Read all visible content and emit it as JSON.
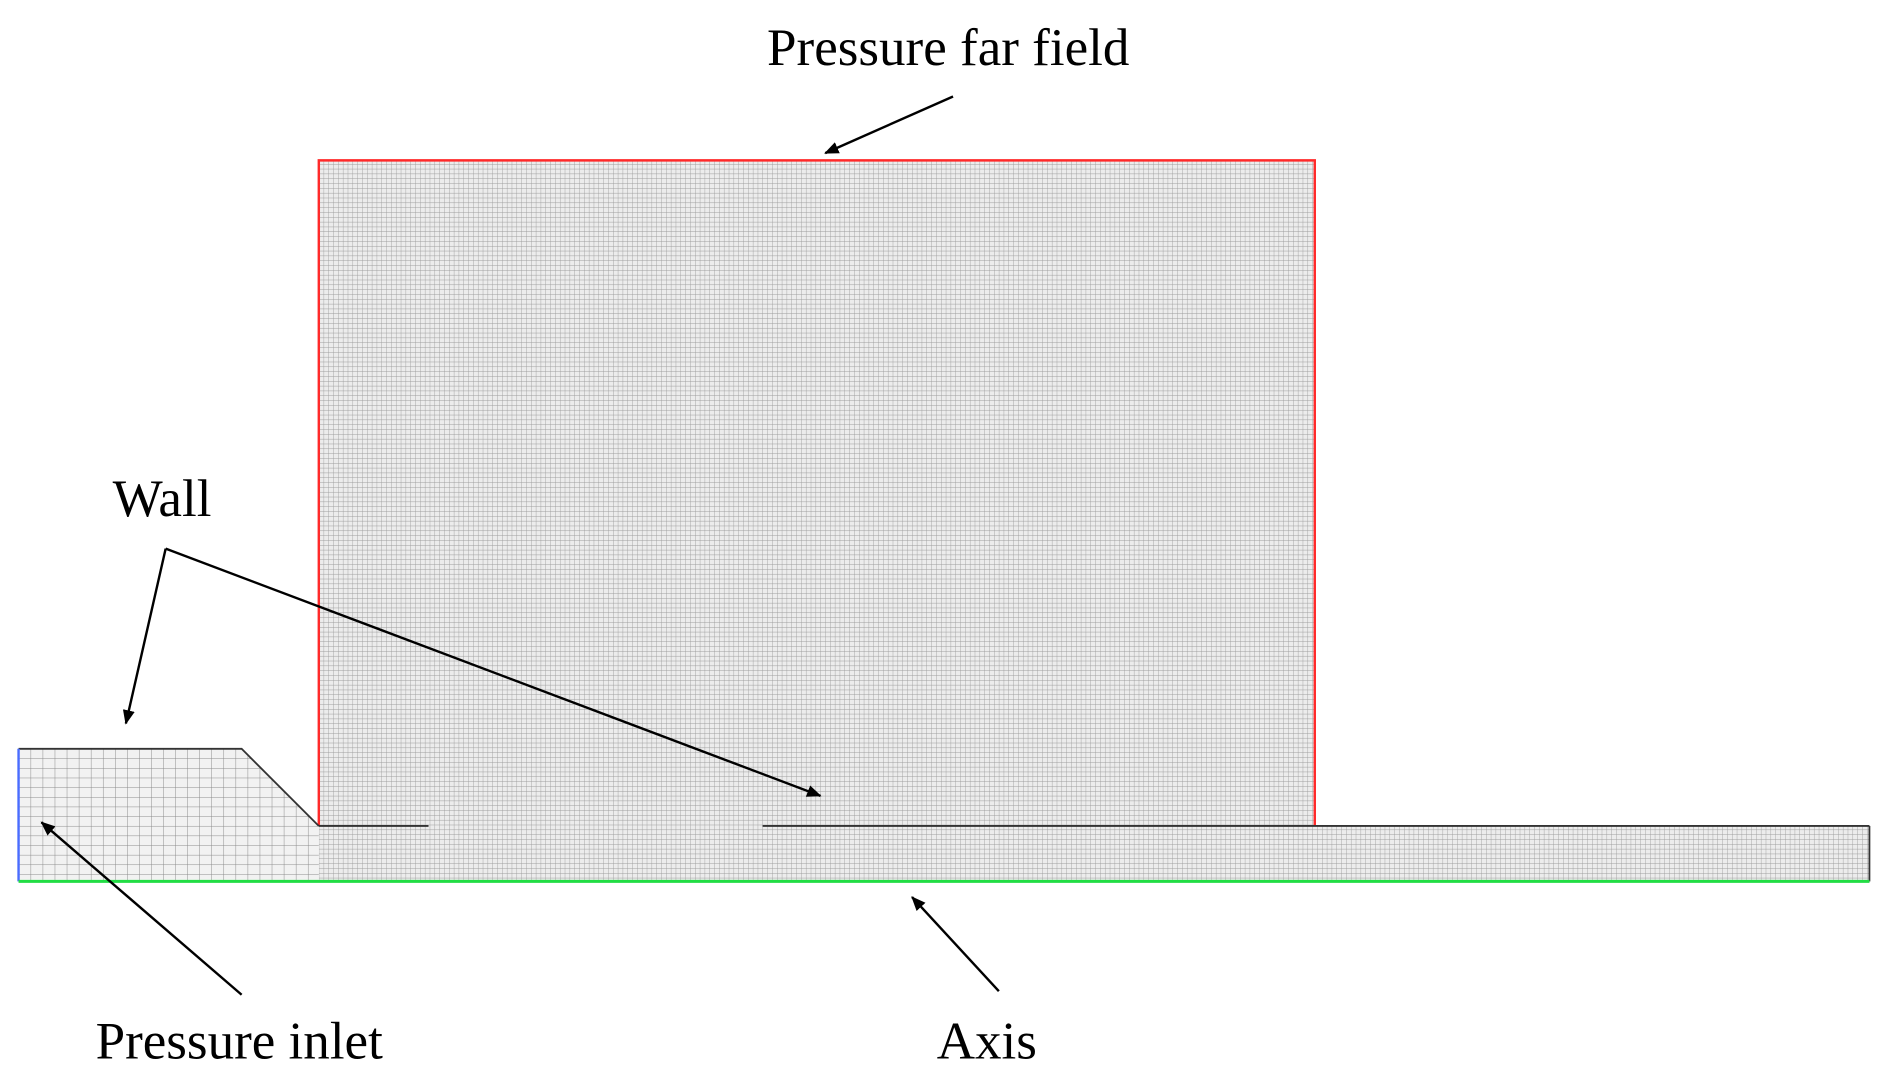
{
  "labels": {
    "far_field": "Pressure far field",
    "wall": "Wall",
    "inlet": "Pressure inlet",
    "axis": "Axis"
  }
}
